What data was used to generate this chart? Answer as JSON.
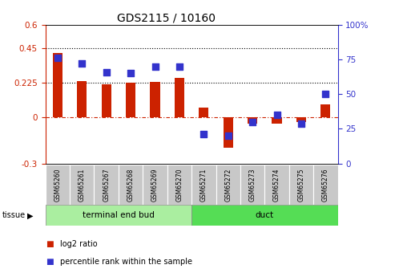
{
  "title": "GDS2115 / 10160",
  "samples": [
    "GSM65260",
    "GSM65261",
    "GSM65267",
    "GSM65268",
    "GSM65269",
    "GSM65270",
    "GSM65271",
    "GSM65272",
    "GSM65273",
    "GSM65274",
    "GSM65275",
    "GSM65276"
  ],
  "log2_ratio": [
    0.42,
    0.235,
    0.215,
    0.225,
    0.23,
    0.255,
    0.065,
    -0.2,
    -0.04,
    -0.04,
    -0.03,
    0.085
  ],
  "percentile_rank": [
    76,
    72,
    66,
    65,
    70,
    70,
    21,
    20,
    30,
    35,
    29,
    50
  ],
  "tissue_groups": [
    {
      "label": "terminal end bud",
      "start": 0,
      "end": 6,
      "color": "#AAEEA0"
    },
    {
      "label": "duct",
      "start": 6,
      "end": 12,
      "color": "#55DD55"
    }
  ],
  "bar_color": "#CC2200",
  "dot_color": "#3333CC",
  "ylim_left": [
    -0.3,
    0.6
  ],
  "ylim_right": [
    0,
    100
  ],
  "yticks_left": [
    -0.3,
    0,
    0.225,
    0.45,
    0.6
  ],
  "yticks_right": [
    0,
    25,
    50,
    75,
    100
  ],
  "hlines": [
    0.45,
    0.225
  ],
  "zero_line_color": "#CC2200",
  "bg_color": "#FFFFFF",
  "bar_width": 0.4,
  "dot_size": 28,
  "label_fontsize": 5.5,
  "tissue_fontsize": 7.5
}
